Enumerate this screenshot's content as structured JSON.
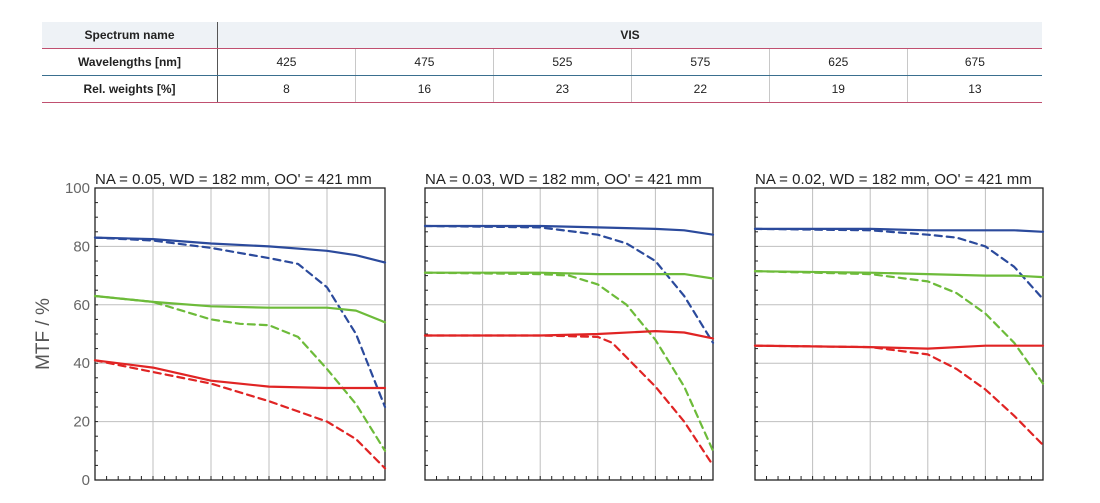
{
  "table": {
    "spectrum_label": "Spectrum name",
    "spectrum_value": "VIS",
    "wavelength_label": "Wavelengths [nm]",
    "weights_label": "Rel. weights [%]",
    "wavelengths": [
      "425",
      "475",
      "525",
      "575",
      "625",
      "675"
    ],
    "weights": [
      "8",
      "16",
      "23",
      "22",
      "19",
      "13"
    ]
  },
  "colors": {
    "blue": "#2b4a9c",
    "green": "#6dbb3a",
    "red": "#e02424",
    "frame": "#222222",
    "grid": "#bfbfbf"
  },
  "chart_data": [
    {
      "type": "line",
      "title": "NA = 0.05, WD = 182 mm, OO' = 421 mm",
      "ylabel": "MTF / %",
      "yticks": [
        "0",
        "20",
        "40",
        "60",
        "80",
        "100"
      ],
      "ylim": [
        0,
        100
      ],
      "xlim": [
        0,
        1
      ],
      "grid": true,
      "series": [
        {
          "color": "blue",
          "dash": false,
          "points": [
            [
              0,
              83
            ],
            [
              0.2,
              82.5
            ],
            [
              0.4,
              81
            ],
            [
              0.6,
              80
            ],
            [
              0.8,
              78.5
            ],
            [
              0.9,
              77
            ],
            [
              1,
              74.5
            ]
          ]
        },
        {
          "color": "blue",
          "dash": true,
          "points": [
            [
              0,
              83
            ],
            [
              0.2,
              82
            ],
            [
              0.4,
              79.5
            ],
            [
              0.6,
              76
            ],
            [
              0.7,
              74
            ],
            [
              0.8,
              66
            ],
            [
              0.9,
              50
            ],
            [
              1,
              25
            ]
          ]
        },
        {
          "color": "green",
          "dash": false,
          "points": [
            [
              0,
              63
            ],
            [
              0.2,
              61
            ],
            [
              0.4,
              59.5
            ],
            [
              0.6,
              59
            ],
            [
              0.8,
              59
            ],
            [
              0.9,
              58
            ],
            [
              1,
              54
            ]
          ]
        },
        {
          "color": "green",
          "dash": true,
          "points": [
            [
              0,
              63
            ],
            [
              0.2,
              61
            ],
            [
              0.4,
              55
            ],
            [
              0.5,
              53.5
            ],
            [
              0.6,
              53
            ],
            [
              0.7,
              49
            ],
            [
              0.8,
              38
            ],
            [
              0.9,
              26
            ],
            [
              1,
              10
            ]
          ]
        },
        {
          "color": "red",
          "dash": false,
          "points": [
            [
              0,
              41
            ],
            [
              0.2,
              38.5
            ],
            [
              0.4,
              34
            ],
            [
              0.6,
              32
            ],
            [
              0.8,
              31.5
            ],
            [
              1,
              31.5
            ]
          ]
        },
        {
          "color": "red",
          "dash": true,
          "points": [
            [
              0,
              41
            ],
            [
              0.2,
              37
            ],
            [
              0.4,
              33
            ],
            [
              0.6,
              27
            ],
            [
              0.8,
              20
            ],
            [
              0.9,
              14
            ],
            [
              1,
              4
            ]
          ]
        }
      ]
    },
    {
      "type": "line",
      "title": "NA = 0.03, WD = 182 mm, OO' = 421 mm",
      "ylim": [
        0,
        100
      ],
      "xlim": [
        0,
        1
      ],
      "grid": true,
      "series": [
        {
          "color": "blue",
          "dash": false,
          "points": [
            [
              0,
              87
            ],
            [
              0.4,
              87
            ],
            [
              0.6,
              86.5
            ],
            [
              0.8,
              86
            ],
            [
              0.9,
              85.5
            ],
            [
              1,
              84
            ]
          ]
        },
        {
          "color": "blue",
          "dash": true,
          "points": [
            [
              0,
              87
            ],
            [
              0.4,
              86.5
            ],
            [
              0.6,
              84
            ],
            [
              0.7,
              81
            ],
            [
              0.8,
              75
            ],
            [
              0.9,
              63
            ],
            [
              1,
              47
            ]
          ]
        },
        {
          "color": "green",
          "dash": false,
          "points": [
            [
              0,
              71
            ],
            [
              0.4,
              71
            ],
            [
              0.6,
              70.5
            ],
            [
              0.8,
              70.5
            ],
            [
              0.9,
              70.5
            ],
            [
              1,
              69
            ]
          ]
        },
        {
          "color": "green",
          "dash": true,
          "points": [
            [
              0,
              71
            ],
            [
              0.4,
              70.5
            ],
            [
              0.5,
              70
            ],
            [
              0.6,
              67
            ],
            [
              0.7,
              60
            ],
            [
              0.8,
              48
            ],
            [
              0.9,
              32
            ],
            [
              1,
              10
            ]
          ]
        },
        {
          "color": "red",
          "dash": false,
          "points": [
            [
              0,
              49.5
            ],
            [
              0.4,
              49.5
            ],
            [
              0.6,
              50
            ],
            [
              0.8,
              51
            ],
            [
              0.9,
              50.5
            ],
            [
              1,
              48.5
            ]
          ]
        },
        {
          "color": "red",
          "dash": true,
          "points": [
            [
              0,
              49.5
            ],
            [
              0.4,
              49.5
            ],
            [
              0.6,
              49
            ],
            [
              0.65,
              47
            ],
            [
              0.7,
              42
            ],
            [
              0.8,
              32
            ],
            [
              0.9,
              20
            ],
            [
              1,
              5
            ]
          ]
        }
      ]
    },
    {
      "type": "line",
      "title": "NA = 0.02, WD = 182 mm, OO' = 421 mm",
      "ylim": [
        0,
        100
      ],
      "xlim": [
        0,
        1
      ],
      "grid": true,
      "series": [
        {
          "color": "blue",
          "dash": false,
          "points": [
            [
              0,
              86
            ],
            [
              0.4,
              86
            ],
            [
              0.6,
              85.5
            ],
            [
              0.8,
              85.5
            ],
            [
              0.9,
              85.5
            ],
            [
              1,
              85
            ]
          ]
        },
        {
          "color": "blue",
          "dash": true,
          "points": [
            [
              0,
              86
            ],
            [
              0.4,
              85.5
            ],
            [
              0.6,
              84
            ],
            [
              0.7,
              83
            ],
            [
              0.8,
              80
            ],
            [
              0.9,
              73
            ],
            [
              1,
              62
            ]
          ]
        },
        {
          "color": "green",
          "dash": false,
          "points": [
            [
              0,
              71.5
            ],
            [
              0.4,
              71
            ],
            [
              0.6,
              70.5
            ],
            [
              0.8,
              70
            ],
            [
              0.9,
              70
            ],
            [
              1,
              69.5
            ]
          ]
        },
        {
          "color": "green",
          "dash": true,
          "points": [
            [
              0,
              71.5
            ],
            [
              0.4,
              70.5
            ],
            [
              0.6,
              68
            ],
            [
              0.7,
              64
            ],
            [
              0.8,
              57
            ],
            [
              0.9,
              47
            ],
            [
              1,
              33
            ]
          ]
        },
        {
          "color": "red",
          "dash": false,
          "points": [
            [
              0,
              46
            ],
            [
              0.4,
              45.5
            ],
            [
              0.6,
              45
            ],
            [
              0.8,
              46
            ],
            [
              1,
              46
            ]
          ]
        },
        {
          "color": "red",
          "dash": true,
          "points": [
            [
              0,
              46
            ],
            [
              0.4,
              45.5
            ],
            [
              0.6,
              43
            ],
            [
              0.7,
              38
            ],
            [
              0.8,
              31
            ],
            [
              0.9,
              22
            ],
            [
              1,
              12
            ]
          ]
        }
      ]
    }
  ]
}
